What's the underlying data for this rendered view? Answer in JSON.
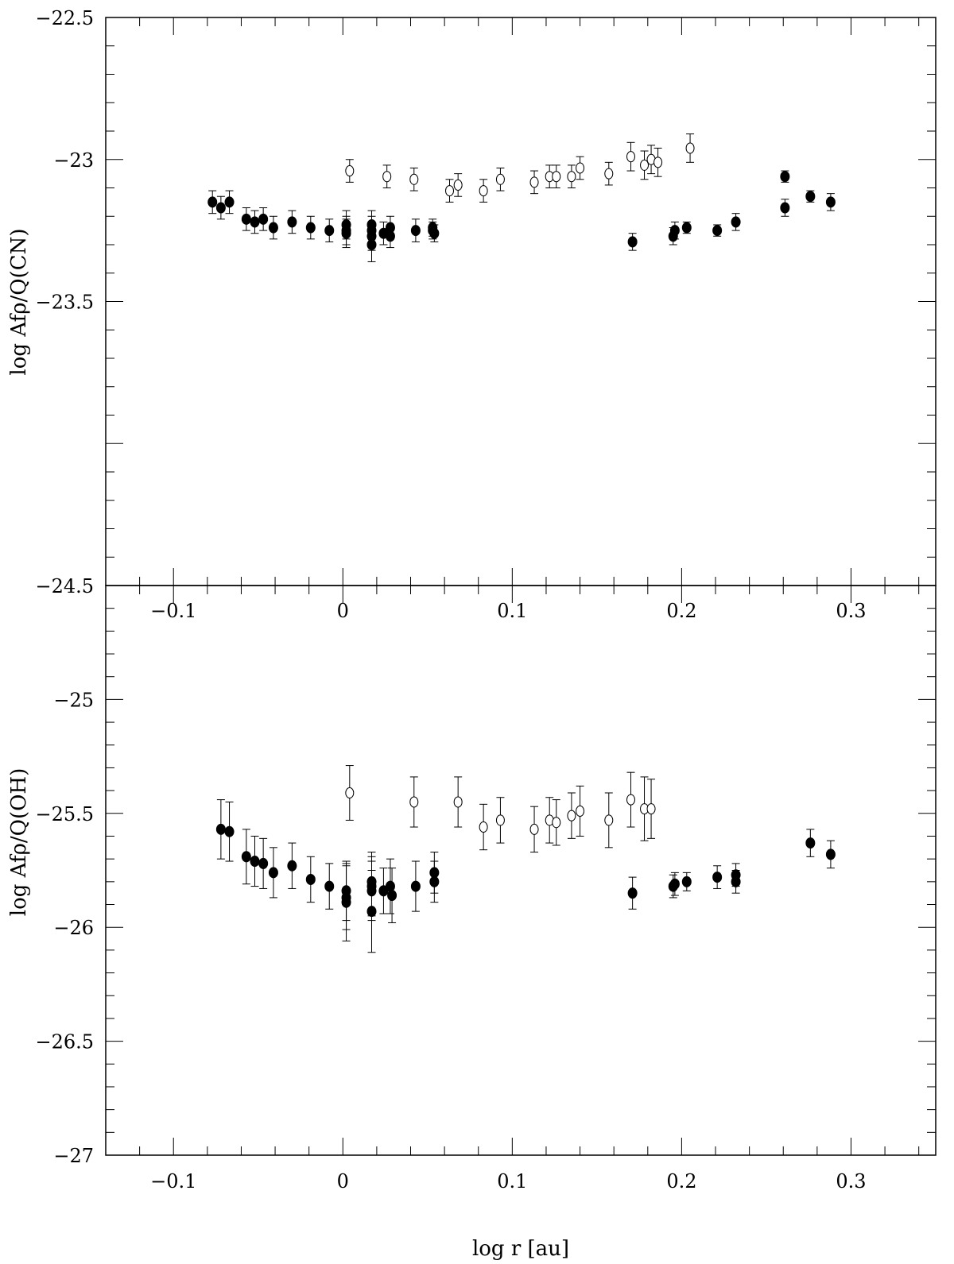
{
  "chart_data": [
    {
      "type": "scatter",
      "title": "",
      "xlabel": "",
      "ylabel": "log Afρ/Q(CN)",
      "xlim": [
        -0.14,
        0.35
      ],
      "ylim": [
        -24.5,
        -22.5
      ],
      "x_ticks": [
        -0.1,
        0,
        0.1,
        0.2,
        0.3
      ],
      "x_tick_labels": [
        "−0.1",
        "0",
        "0.1",
        "0.2",
        "0.3"
      ],
      "y_ticks": [
        -24.5,
        -23.5,
        -23,
        -22.5
      ],
      "y_tick_labels": [
        "−24.5",
        "−23.5",
        "−23",
        "−22.5"
      ],
      "grid": false,
      "series": [
        {
          "marker": "filled-circle",
          "points": [
            {
              "x": -0.077,
              "y": -23.15,
              "err": 0.04
            },
            {
              "x": -0.072,
              "y": -23.17,
              "err": 0.04
            },
            {
              "x": -0.067,
              "y": -23.15,
              "err": 0.04
            },
            {
              "x": -0.057,
              "y": -23.21,
              "err": 0.04
            },
            {
              "x": -0.052,
              "y": -23.22,
              "err": 0.04
            },
            {
              "x": -0.047,
              "y": -23.21,
              "err": 0.04
            },
            {
              "x": -0.041,
              "y": -23.24,
              "err": 0.04
            },
            {
              "x": -0.03,
              "y": -23.22,
              "err": 0.04
            },
            {
              "x": -0.019,
              "y": -23.24,
              "err": 0.04
            },
            {
              "x": -0.008,
              "y": -23.25,
              "err": 0.04
            },
            {
              "x": 0.002,
              "y": -23.23,
              "err": 0.05
            },
            {
              "x": 0.002,
              "y": -23.25,
              "err": 0.05
            },
            {
              "x": 0.002,
              "y": -23.26,
              "err": 0.05
            },
            {
              "x": 0.017,
              "y": -23.23,
              "err": 0.05
            },
            {
              "x": 0.017,
              "y": -23.25,
              "err": 0.05
            },
            {
              "x": 0.017,
              "y": -23.27,
              "err": 0.05
            },
            {
              "x": 0.017,
              "y": -23.3,
              "err": 0.06
            },
            {
              "x": 0.024,
              "y": -23.26,
              "err": 0.04
            },
            {
              "x": 0.028,
              "y": -23.24,
              "err": 0.04
            },
            {
              "x": 0.028,
              "y": -23.27,
              "err": 0.04
            },
            {
              "x": 0.043,
              "y": -23.25,
              "err": 0.04
            },
            {
              "x": 0.053,
              "y": -23.24,
              "err": 0.03
            },
            {
              "x": 0.053,
              "y": -23.25,
              "err": 0.03
            },
            {
              "x": 0.054,
              "y": -23.26,
              "err": 0.03
            },
            {
              "x": 0.171,
              "y": -23.29,
              "err": 0.03
            },
            {
              "x": 0.195,
              "y": -23.27,
              "err": 0.03
            },
            {
              "x": 0.196,
              "y": -23.25,
              "err": 0.03
            },
            {
              "x": 0.203,
              "y": -23.24,
              "err": 0.02
            },
            {
              "x": 0.221,
              "y": -23.25,
              "err": 0.02
            },
            {
              "x": 0.232,
              "y": -23.22,
              "err": 0.03
            },
            {
              "x": 0.261,
              "y": -23.06,
              "err": 0.02
            },
            {
              "x": 0.261,
              "y": -23.17,
              "err": 0.03
            },
            {
              "x": 0.276,
              "y": -23.13,
              "err": 0.02
            },
            {
              "x": 0.288,
              "y": -23.15,
              "err": 0.03
            }
          ]
        },
        {
          "marker": "open-circle",
          "points": [
            {
              "x": 0.004,
              "y": -23.04,
              "err": 0.04
            },
            {
              "x": 0.026,
              "y": -23.06,
              "err": 0.04
            },
            {
              "x": 0.042,
              "y": -23.07,
              "err": 0.04
            },
            {
              "x": 0.063,
              "y": -23.11,
              "err": 0.04
            },
            {
              "x": 0.068,
              "y": -23.09,
              "err": 0.04
            },
            {
              "x": 0.083,
              "y": -23.11,
              "err": 0.04
            },
            {
              "x": 0.093,
              "y": -23.07,
              "err": 0.04
            },
            {
              "x": 0.113,
              "y": -23.08,
              "err": 0.04
            },
            {
              "x": 0.122,
              "y": -23.06,
              "err": 0.04
            },
            {
              "x": 0.126,
              "y": -23.06,
              "err": 0.04
            },
            {
              "x": 0.135,
              "y": -23.06,
              "err": 0.04
            },
            {
              "x": 0.14,
              "y": -23.03,
              "err": 0.04
            },
            {
              "x": 0.157,
              "y": -23.05,
              "err": 0.04
            },
            {
              "x": 0.17,
              "y": -22.99,
              "err": 0.05
            },
            {
              "x": 0.178,
              "y": -23.02,
              "err": 0.05
            },
            {
              "x": 0.182,
              "y": -23.0,
              "err": 0.05
            },
            {
              "x": 0.186,
              "y": -23.01,
              "err": 0.05
            },
            {
              "x": 0.205,
              "y": -22.96,
              "err": 0.05
            }
          ]
        }
      ]
    },
    {
      "type": "scatter",
      "title": "",
      "xlabel": "log r [au]",
      "ylabel": "log Afρ/Q(OH)",
      "xlim": [
        -0.14,
        0.35
      ],
      "ylim": [
        -27,
        -24.5
      ],
      "x_ticks": [
        -0.1,
        0,
        0.1,
        0.2,
        0.3
      ],
      "x_tick_labels": [
        "−0.1",
        "0",
        "0.1",
        "0.2",
        "0.3"
      ],
      "y_ticks": [
        -27,
        -26.5,
        -26,
        -25.5,
        -25
      ],
      "y_tick_labels": [
        "−27",
        "−26.5",
        "−26",
        "−25.5",
        "−25"
      ],
      "grid": false,
      "series": [
        {
          "marker": "filled-circle",
          "points": [
            {
              "x": -0.072,
              "y": -25.57,
              "err": 0.13
            },
            {
              "x": -0.067,
              "y": -25.58,
              "err": 0.13
            },
            {
              "x": -0.057,
              "y": -25.69,
              "err": 0.12
            },
            {
              "x": -0.052,
              "y": -25.71,
              "err": 0.11
            },
            {
              "x": -0.047,
              "y": -25.72,
              "err": 0.11
            },
            {
              "x": -0.041,
              "y": -25.76,
              "err": 0.11
            },
            {
              "x": -0.03,
              "y": -25.73,
              "err": 0.1
            },
            {
              "x": -0.019,
              "y": -25.79,
              "err": 0.1
            },
            {
              "x": -0.008,
              "y": -25.82,
              "err": 0.1
            },
            {
              "x": 0.002,
              "y": -25.84,
              "err": 0.13
            },
            {
              "x": 0.002,
              "y": -25.87,
              "err": 0.14
            },
            {
              "x": 0.002,
              "y": -25.89,
              "err": 0.17
            },
            {
              "x": 0.017,
              "y": -25.8,
              "err": 0.13
            },
            {
              "x": 0.017,
              "y": -25.82,
              "err": 0.13
            },
            {
              "x": 0.017,
              "y": -25.84,
              "err": 0.13
            },
            {
              "x": 0.017,
              "y": -25.93,
              "err": 0.18
            },
            {
              "x": 0.024,
              "y": -25.84,
              "err": 0.1
            },
            {
              "x": 0.028,
              "y": -25.82,
              "err": 0.12
            },
            {
              "x": 0.029,
              "y": -25.86,
              "err": 0.12
            },
            {
              "x": 0.043,
              "y": -25.82,
              "err": 0.11
            },
            {
              "x": 0.054,
              "y": -25.76,
              "err": 0.09
            },
            {
              "x": 0.054,
              "y": -25.8,
              "err": 0.09
            },
            {
              "x": 0.171,
              "y": -25.85,
              "err": 0.07
            },
            {
              "x": 0.195,
              "y": -25.82,
              "err": 0.05
            },
            {
              "x": 0.196,
              "y": -25.81,
              "err": 0.05
            },
            {
              "x": 0.203,
              "y": -25.8,
              "err": 0.04
            },
            {
              "x": 0.221,
              "y": -25.78,
              "err": 0.05
            },
            {
              "x": 0.232,
              "y": -25.8,
              "err": 0.05
            },
            {
              "x": 0.232,
              "y": -25.77,
              "err": 0.05
            },
            {
              "x": 0.276,
              "y": -25.63,
              "err": 0.06
            },
            {
              "x": 0.288,
              "y": -25.68,
              "err": 0.06
            }
          ]
        },
        {
          "marker": "open-circle",
          "points": [
            {
              "x": 0.004,
              "y": -25.41,
              "err": 0.12
            },
            {
              "x": 0.042,
              "y": -25.45,
              "err": 0.11
            },
            {
              "x": 0.068,
              "y": -25.45,
              "err": 0.11
            },
            {
              "x": 0.083,
              "y": -25.56,
              "err": 0.1
            },
            {
              "x": 0.093,
              "y": -25.53,
              "err": 0.1
            },
            {
              "x": 0.113,
              "y": -25.57,
              "err": 0.1
            },
            {
              "x": 0.122,
              "y": -25.53,
              "err": 0.1
            },
            {
              "x": 0.126,
              "y": -25.54,
              "err": 0.1
            },
            {
              "x": 0.135,
              "y": -25.51,
              "err": 0.1
            },
            {
              "x": 0.14,
              "y": -25.49,
              "err": 0.11
            },
            {
              "x": 0.157,
              "y": -25.53,
              "err": 0.12
            },
            {
              "x": 0.17,
              "y": -25.44,
              "err": 0.12
            },
            {
              "x": 0.178,
              "y": -25.48,
              "err": 0.14
            },
            {
              "x": 0.182,
              "y": -25.48,
              "err": 0.13
            }
          ]
        }
      ]
    }
  ]
}
